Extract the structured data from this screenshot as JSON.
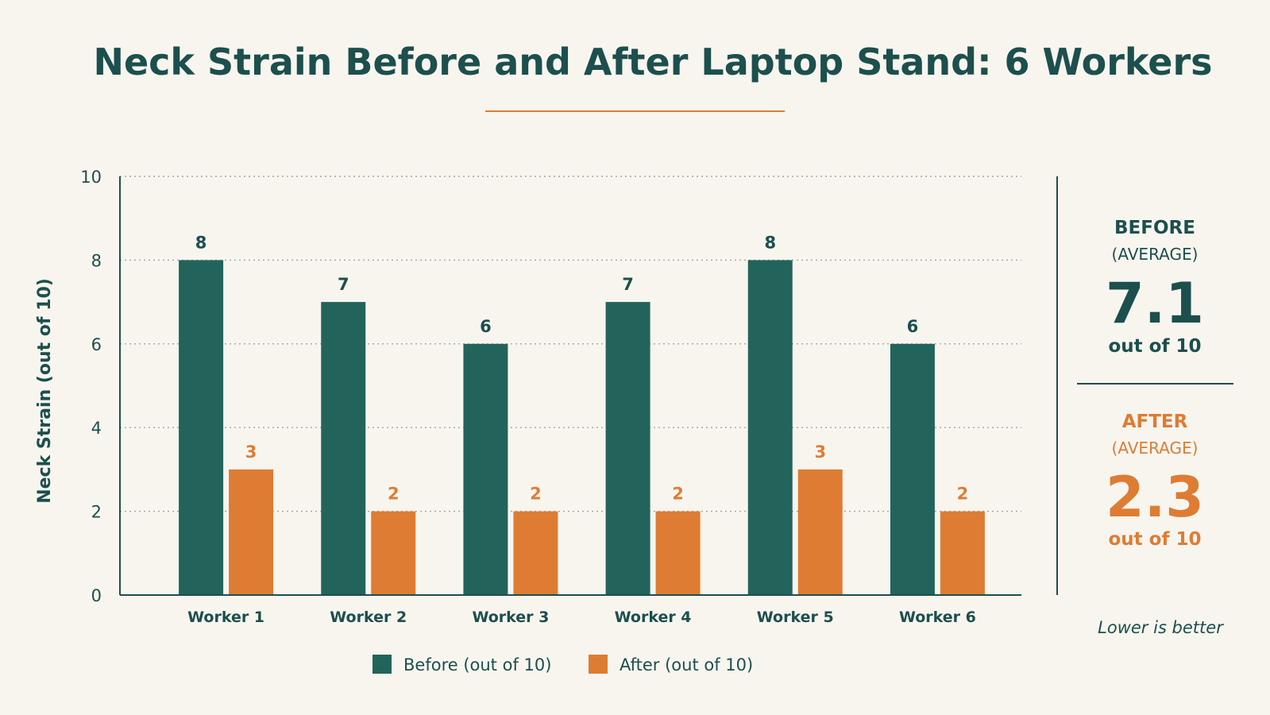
{
  "title": "Neck Strain Before and After Laptop Stand: 6 Workers",
  "colors": {
    "before": "#22645b",
    "after": "#de7c33",
    "text": "#1c4f4d",
    "background": "#f8f5ef"
  },
  "chart_data": {
    "type": "bar",
    "title": "Neck Strain Before and After Laptop Stand: 6 Workers",
    "xlabel": "",
    "ylabel": "Neck Strain (out of 10)",
    "ylim": [
      0,
      10
    ],
    "yticks": [
      "0",
      "2",
      "4",
      "6",
      "8",
      "10"
    ],
    "grid": true,
    "legend_position": "bottom",
    "categories": [
      "Worker 1",
      "Worker 2",
      "Worker 3",
      "Worker 4",
      "Worker 5",
      "Worker 6"
    ],
    "series": [
      {
        "name": "Before (out of 10)",
        "values": [
          8,
          7,
          6,
          7,
          8,
          6
        ]
      },
      {
        "name": "After (out of 10)",
        "values": [
          3,
          2,
          2,
          2,
          3,
          2
        ]
      }
    ]
  },
  "summary": {
    "before": {
      "label": "BEFORE",
      "sub": "(AVERAGE)",
      "value": "7.1",
      "unit": "out of 10"
    },
    "after": {
      "label": "AFTER",
      "sub": "(AVERAGE)",
      "value": "2.3",
      "unit": "out of 10"
    },
    "note": "Lower is better"
  }
}
